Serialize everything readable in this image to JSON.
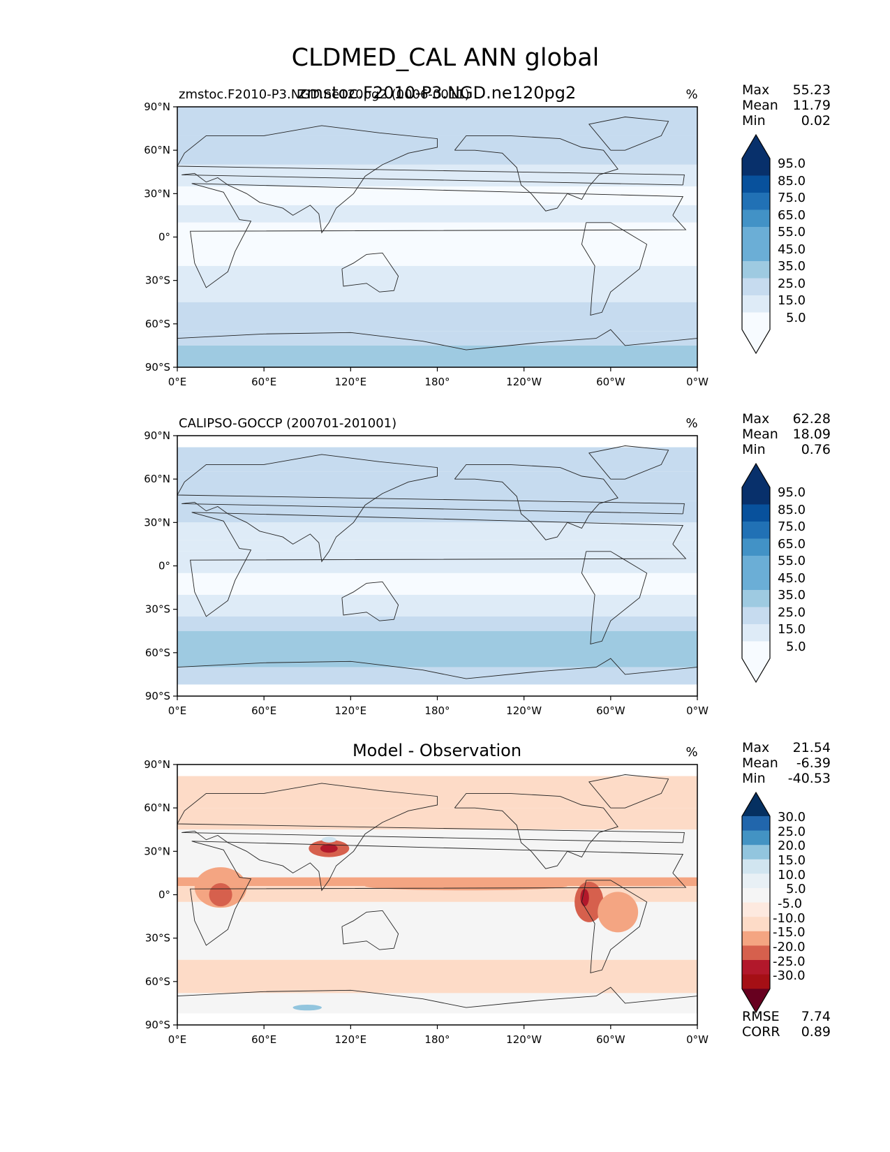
{
  "figure_title": "CLDMED_CAL ANN global",
  "colors": {
    "seq": [
      "#f7fbff",
      "#deebf7",
      "#c6dbef",
      "#9ecae1",
      "#6baed6",
      "#4292c6",
      "#2171b5",
      "#08519c",
      "#08306b"
    ],
    "diff_neg": [
      "#fddbc7",
      "#f4a582",
      "#d6604d",
      "#b2182b",
      "#67001f"
    ],
    "diff_pos": [
      "#d1e5f0",
      "#92c5de",
      "#4393c3",
      "#2166ac",
      "#053061"
    ],
    "diff_zero": "#f5f5f5",
    "land": "none",
    "coast": "#222222"
  },
  "axes": {
    "lat_ticks": [
      "90°N",
      "60°N",
      "30°N",
      "0°",
      "30°S",
      "60°S",
      "90°S"
    ],
    "lon_ticks": [
      "0°E",
      "60°E",
      "120°E",
      "180°",
      "120°W",
      "60°W",
      "0°W"
    ]
  },
  "chart_data": [
    {
      "type": "heatmap",
      "title": "",
      "subtitle_left": "zmstoc.F2010-P3.NGD.ne120pg2 (0006-0011)",
      "subtitle_center": "zmstoc.F2010-P3.NGD.ne120pg2",
      "units": "%",
      "stats": [
        {
          "label": "Max",
          "value": "55.23"
        },
        {
          "label": "Mean",
          "value": "11.79"
        },
        {
          "label": "Min",
          "value": "0.02"
        }
      ],
      "colorbar_labels": [
        "95.0",
        "85.0",
        "75.0",
        "65.0",
        "55.0",
        "45.0",
        "35.0",
        "25.0",
        "15.0",
        "5.0"
      ],
      "xlim": [
        0,
        360
      ],
      "ylim": [
        -90,
        90
      ],
      "data_coverage_lat": [
        -90,
        90
      ]
    },
    {
      "type": "heatmap",
      "title": "",
      "subtitle_left": "CALIPSO-GOCCP (200701-201001)",
      "units": "%",
      "stats": [
        {
          "label": "Max",
          "value": "62.28"
        },
        {
          "label": "Mean",
          "value": "18.09"
        },
        {
          "label": "Min",
          "value": "0.76"
        }
      ],
      "colorbar_labels": [
        "95.0",
        "85.0",
        "75.0",
        "65.0",
        "55.0",
        "45.0",
        "35.0",
        "25.0",
        "15.0",
        "5.0"
      ],
      "xlim": [
        0,
        360
      ],
      "ylim": [
        -90,
        90
      ],
      "data_coverage_lat": [
        -82,
        82
      ]
    },
    {
      "type": "heatmap",
      "title": "Model - Observation",
      "units": "%",
      "stats": [
        {
          "label": "Max",
          "value": "21.54"
        },
        {
          "label": "Mean",
          "value": "-6.39"
        },
        {
          "label": "Min",
          "value": "-40.53"
        }
      ],
      "colorbar_labels": [
        "30.0",
        "25.0",
        "20.0",
        "15.0",
        "10.0",
        "5.0",
        "-5.0",
        "-10.0",
        "-15.0",
        "-20.0",
        "-25.0",
        "-30.0"
      ],
      "extra_stats": [
        {
          "label": "RMSE",
          "value": "7.74"
        },
        {
          "label": "CORR",
          "value": "0.89"
        }
      ],
      "xlim": [
        0,
        360
      ],
      "ylim": [
        -90,
        90
      ],
      "data_coverage_lat": [
        -82,
        82
      ]
    }
  ]
}
